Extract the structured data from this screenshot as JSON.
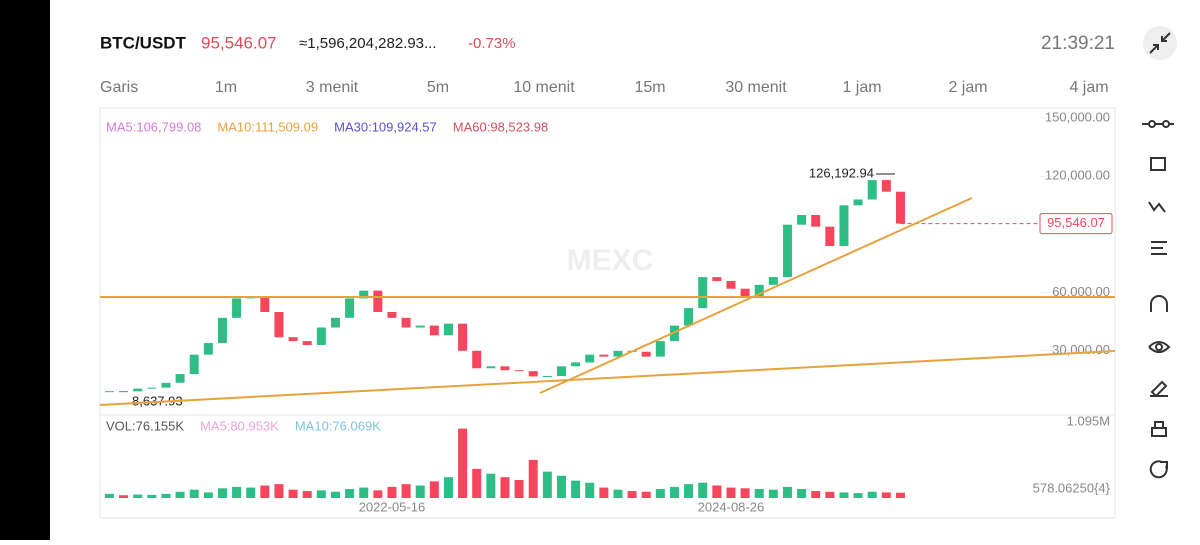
{
  "header": {
    "symbol": "BTC/USDT",
    "price": "95,546.07",
    "turnover": "≈1,596,204,282.93...",
    "change": "-0.73%",
    "time": "21:39:21"
  },
  "timeframes": [
    "Garis",
    "1m",
    "3 menit",
    "5m",
    "10 menit",
    "15m",
    "30 menit",
    "1 jam",
    "2 jam",
    "4 jam"
  ],
  "watermark": "MEXC",
  "chart_data": {
    "type": "candlestick",
    "indicators": [
      {
        "label": "MA5:106,799.08",
        "color": "#d17dd3"
      },
      {
        "label": "MA10:111,509.09",
        "color": "#e6a23c"
      },
      {
        "label": "MA30:109,924.57",
        "color": "#5b4fcf"
      },
      {
        "label": "MA60:98,523.98",
        "color": "#d0505e"
      }
    ],
    "categories": [
      null,
      null,
      null,
      null,
      null,
      null,
      null,
      null,
      null,
      null,
      null,
      null,
      null,
      null,
      null,
      null,
      null,
      null,
      null,
      null,
      "2022-05-16",
      null,
      null,
      null,
      null,
      null,
      null,
      null,
      null,
      null,
      null,
      null,
      null,
      null,
      null,
      null,
      null,
      null,
      null,
      null,
      null,
      null,
      null,
      null,
      "2024-08-26",
      null,
      null,
      null,
      null,
      null,
      null,
      null,
      null,
      null,
      null,
      null,
      null
    ],
    "values": [
      9200,
      9100,
      10500,
      11000,
      13500,
      18000,
      28000,
      34000,
      47000,
      57000,
      58000,
      50000,
      37000,
      35000,
      33000,
      42000,
      47000,
      57000,
      61000,
      50000,
      47000,
      42000,
      43000,
      38000,
      44000,
      30000,
      21000,
      22000,
      20000,
      19500,
      16800,
      17000,
      22000,
      24000,
      28000,
      27000,
      30000,
      29500,
      27000,
      35000,
      43000,
      52000,
      68000,
      66000,
      62000,
      58000,
      64000,
      68000,
      95000,
      100000,
      94000,
      84000,
      105000,
      108000,
      118000,
      112000,
      95546.07
    ],
    "up_color": "#2ebd85",
    "down_color": "#f6465d",
    "ylim": [
      0,
      150000
    ],
    "yticks": [
      {
        "value": 30000,
        "label": "30,000.00"
      },
      {
        "value": 60000,
        "label": "60,000.00"
      },
      {
        "value": 120000,
        "label": "120,000.00"
      },
      {
        "value": 150000,
        "label": "150,000.00"
      }
    ],
    "high_label": "126,192.94",
    "low_label": "8,637.93",
    "last_label": "95,546.07",
    "volume": {
      "legend": [
        {
          "label": "VOL:76.155K",
          "color": "#555"
        },
        {
          "label": "MA5:80.953K",
          "color": "#e9a5e0"
        },
        {
          "label": "MA10:76.069K",
          "color": "#7cc6e0"
        }
      ],
      "values": [
        60000,
        40000,
        50000,
        45000,
        60000,
        90000,
        120000,
        80000,
        140000,
        160000,
        150000,
        180000,
        200000,
        120000,
        100000,
        110000,
        90000,
        130000,
        150000,
        110000,
        160000,
        200000,
        180000,
        240000,
        300000,
        1000000,
        420000,
        350000,
        300000,
        260000,
        550000,
        380000,
        320000,
        250000,
        220000,
        150000,
        120000,
        100000,
        90000,
        130000,
        160000,
        200000,
        220000,
        180000,
        150000,
        140000,
        130000,
        120000,
        160000,
        130000,
        100000,
        90000,
        80000,
        70000,
        90000,
        80000,
        76155
      ],
      "ylim": [
        0,
        1095000
      ],
      "yticks": [
        {
          "value": 1095000,
          "label": "1.095M"
        }
      ],
      "bottom_label": "578.06250{4}"
    }
  }
}
